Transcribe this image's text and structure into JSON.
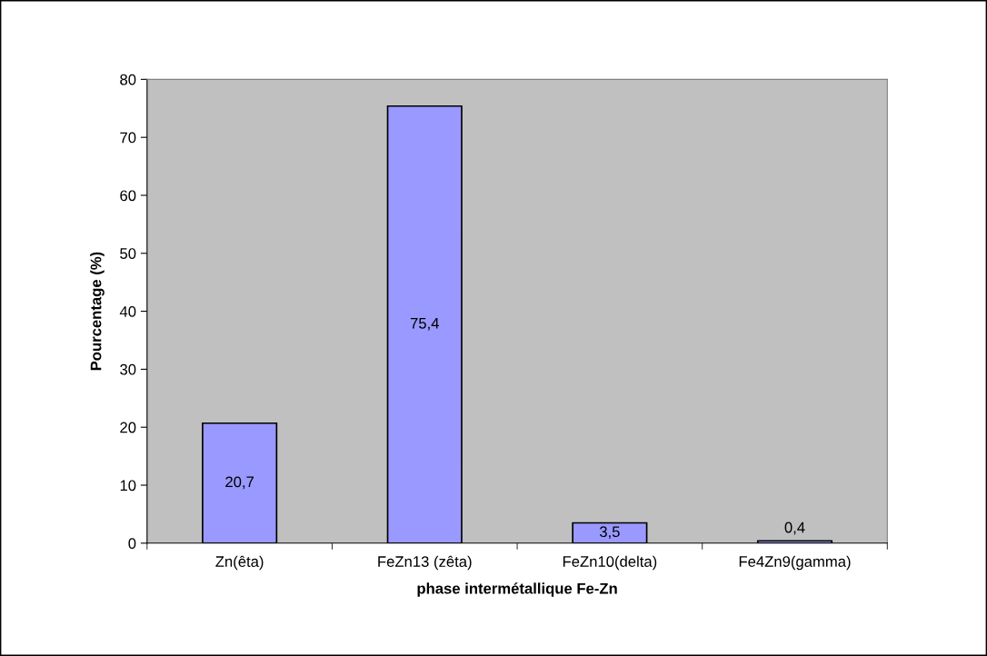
{
  "chart_data": {
    "type": "bar",
    "xlabel": "phase intermétallique Fe-Zn",
    "ylabel": "Pourcentage (%)",
    "categories": [
      "Zn(êta)",
      "FeZn13 (zêta)",
      "FeZn10(delta)",
      "Fe4Zn9(gamma)"
    ],
    "values": [
      20.7,
      75.4,
      3.5,
      0.4
    ],
    "value_labels": [
      "20,7",
      "75,4",
      "3,5",
      "0,4"
    ],
    "color": "#9999ff",
    "ylim": [
      0,
      80
    ],
    "yticks": [
      0,
      10,
      20,
      30,
      40,
      50,
      60,
      70,
      80
    ]
  }
}
